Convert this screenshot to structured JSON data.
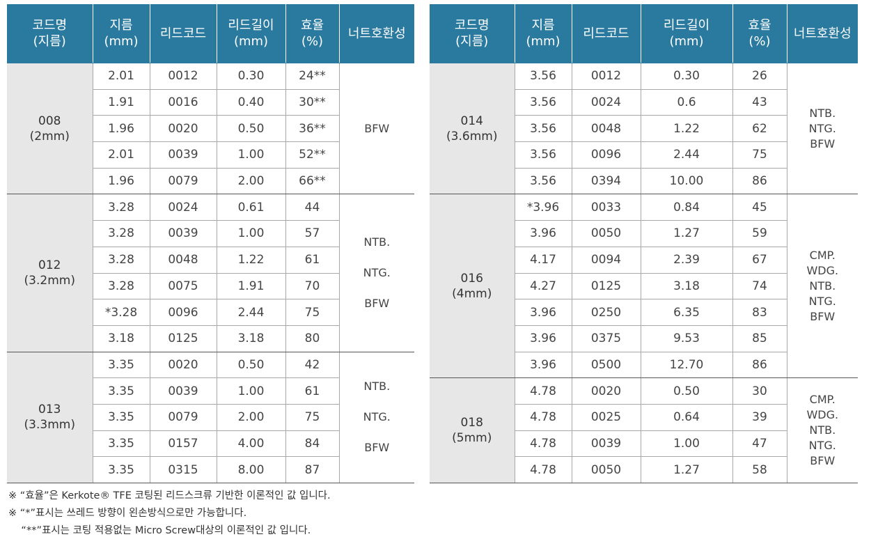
{
  "headers": [
    "코드명\n(지름)",
    "지름\n(mm)",
    "리드코드",
    "리드길이\n(mm)",
    "효율\n(%)",
    "너트호환성"
  ],
  "left_groups": [
    {
      "code": "008\n(2mm)",
      "compat": "BFW",
      "rows": [
        [
          "2.01",
          "0012",
          "0.30",
          "24**"
        ],
        [
          "1.91",
          "0016",
          "0.40",
          "30**"
        ],
        [
          "1.96",
          "0020",
          "0.50",
          "36**"
        ],
        [
          "2.01",
          "0039",
          "1.00",
          "52**"
        ],
        [
          "1.96",
          "0079",
          "2.00",
          "66**"
        ]
      ]
    },
    {
      "code": "012\n(3.2mm)",
      "compat": "NTB.\n\nNTG.\n\nBFW",
      "rows": [
        [
          "3.28",
          "0024",
          "0.61",
          "44"
        ],
        [
          "3.28",
          "0039",
          "1.00",
          "57"
        ],
        [
          "3.28",
          "0048",
          "1.22",
          "61"
        ],
        [
          "3.28",
          "0075",
          "1.91",
          "70"
        ],
        [
          "*3.28",
          "0096",
          "2.44",
          "75"
        ],
        [
          "3.18",
          "0125",
          "3.18",
          "80"
        ]
      ]
    },
    {
      "code": "013\n(3.3mm)",
      "compat": "NTB.\n\nNTG.\n\nBFW",
      "rows": [
        [
          "3.35",
          "0020",
          "0.50",
          "42"
        ],
        [
          "3.35",
          "0039",
          "1.00",
          "61"
        ],
        [
          "3.35",
          "0079",
          "2.00",
          "75"
        ],
        [
          "3.35",
          "0157",
          "4.00",
          "84"
        ],
        [
          "3.35",
          "0315",
          "8.00",
          "87"
        ]
      ]
    }
  ],
  "right_groups": [
    {
      "code": "014\n(3.6mm)",
      "compat": "NTB.\nNTG.\nBFW",
      "rows": [
        [
          "3.56",
          "0012",
          "0.30",
          "26"
        ],
        [
          "3.56",
          "0024",
          "0.6",
          "43"
        ],
        [
          "3.56",
          "0048",
          "1.22",
          "62"
        ],
        [
          "3.56",
          "0096",
          "2.44",
          "75"
        ],
        [
          "3.56",
          "0394",
          "10.00",
          "86"
        ]
      ]
    },
    {
      "code": "016\n(4mm)",
      "compat": "CMP.\nWDG.\nNTB.\nNTG.\nBFW",
      "rows": [
        [
          "*3.96",
          "0033",
          "0.84",
          "45"
        ],
        [
          "3.96",
          "0050",
          "1.27",
          "59"
        ],
        [
          "4.17",
          "0094",
          "2.39",
          "67"
        ],
        [
          "4.27",
          "0125",
          "3.18",
          "74"
        ],
        [
          "3.96",
          "0250",
          "6.35",
          "83"
        ],
        [
          "3.96",
          "0375",
          "9.53",
          "85"
        ],
        [
          "3.96",
          "0500",
          "12.70",
          "86"
        ]
      ]
    },
    {
      "code": "018\n(5mm)",
      "compat": "CMP.\nWDG.\nNTB.\nNTG.\nBFW",
      "rows": [
        [
          "4.78",
          "0020",
          "0.50",
          "30"
        ],
        [
          "4.78",
          "0025",
          "0.64",
          "39"
        ],
        [
          "4.78",
          "0039",
          "1.00",
          "47"
        ],
        [
          "4.78",
          "0050",
          "1.27",
          "58"
        ]
      ]
    }
  ],
  "notes": [
    "※ “효율”은 Kerkote® TFE 코팅된 리드스크류 기반한 이론적인 값 입니다.",
    "※ “*”표시는 쓰레드 방향이 왼손방식으로만 가능합니다.",
    "    “**”표시는 코팅 적용없는 Micro Screw대상의 이론적인 값 입니다."
  ]
}
